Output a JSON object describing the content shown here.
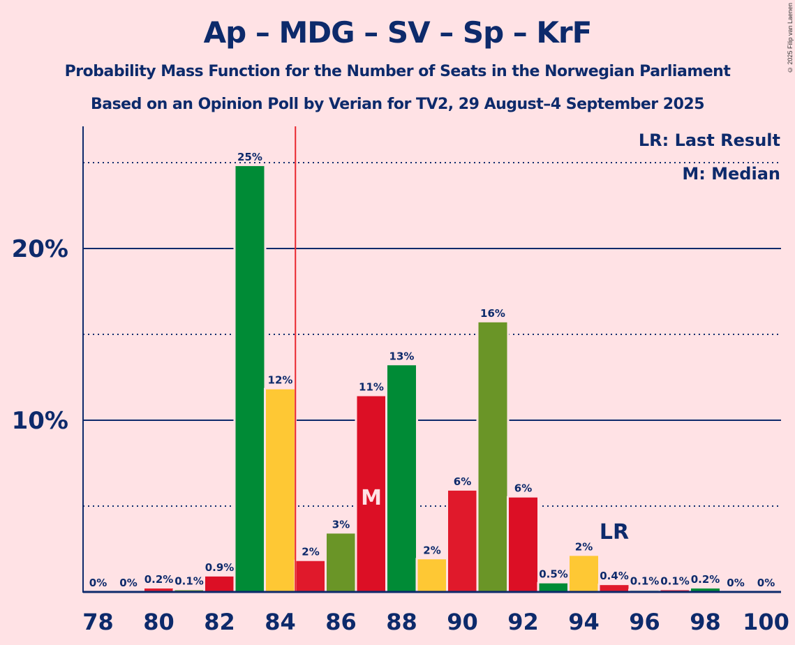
{
  "chart_data": {
    "type": "bar",
    "title": "Ap – MDG – SV – Sp – KrF",
    "subtitle": "Probability Mass Function for the Number of Seats in the Norwegian Parliament",
    "subtitle2": "Based on an Opinion Poll by Verian for TV2, 29 August–4 September 2025",
    "copyright": "© 2025 Filip van Laenen",
    "xlabel": "",
    "ylabel": "",
    "x": [
      78,
      79,
      80,
      81,
      82,
      83,
      84,
      85,
      86,
      87,
      88,
      89,
      90,
      91,
      92,
      93,
      94,
      95,
      96,
      97,
      98,
      99,
      100
    ],
    "values": [
      0,
      0,
      0.2,
      0.1,
      0.9,
      24.8,
      11.8,
      1.8,
      3.4,
      11.4,
      13.2,
      1.9,
      5.9,
      15.7,
      5.5,
      0.5,
      2.1,
      0.4,
      0.1,
      0.1,
      0.2,
      0,
      0
    ],
    "labels": [
      "0%",
      "0%",
      "0.2%",
      "0.1%",
      "0.9%",
      "25%",
      "12%",
      "2%",
      "3%",
      "11%",
      "13%",
      "2%",
      "6%",
      "16%",
      "6%",
      "0.5%",
      "2%",
      "0.4%",
      "0.1%",
      "0.1%",
      "0.2%",
      "0%",
      "0%"
    ],
    "colors": [
      "#e0192b",
      "#e0192b",
      "#e0192b",
      "#6a9527",
      "#dc0f25",
      "#008b36",
      "#fec834",
      "#e0192b",
      "#6a9527",
      "#dc0f25",
      "#008b36",
      "#fec834",
      "#e0192b",
      "#6a9527",
      "#dc0f25",
      "#008b36",
      "#fec834",
      "#e0192b",
      "#d9cfc0",
      "#e0192b",
      "#008b36",
      "#6a9527",
      "#dc0f25"
    ],
    "ylim": [
      0,
      27
    ],
    "yticks_major": [
      10,
      20
    ],
    "ytick_labels": [
      "10%",
      "20%"
    ],
    "yticks_minor": [
      5,
      15,
      25
    ],
    "xtick_values": [
      78,
      80,
      82,
      84,
      86,
      88,
      90,
      92,
      94,
      96,
      98,
      100
    ],
    "xtick_labels": [
      "78",
      "80",
      "82",
      "84",
      "86",
      "88",
      "90",
      "92",
      "94",
      "96",
      "98",
      "100"
    ],
    "majority_line": 84.5,
    "median_seat": 87,
    "median_label": "M",
    "last_result_seat": 95,
    "last_result_label": "LR",
    "legend": [
      "LR: Last Result",
      "M: Median"
    ],
    "legend_placement": "top-right",
    "grid": true,
    "axis_color": "#0d2a6b",
    "majority_color": "#e8262e"
  }
}
